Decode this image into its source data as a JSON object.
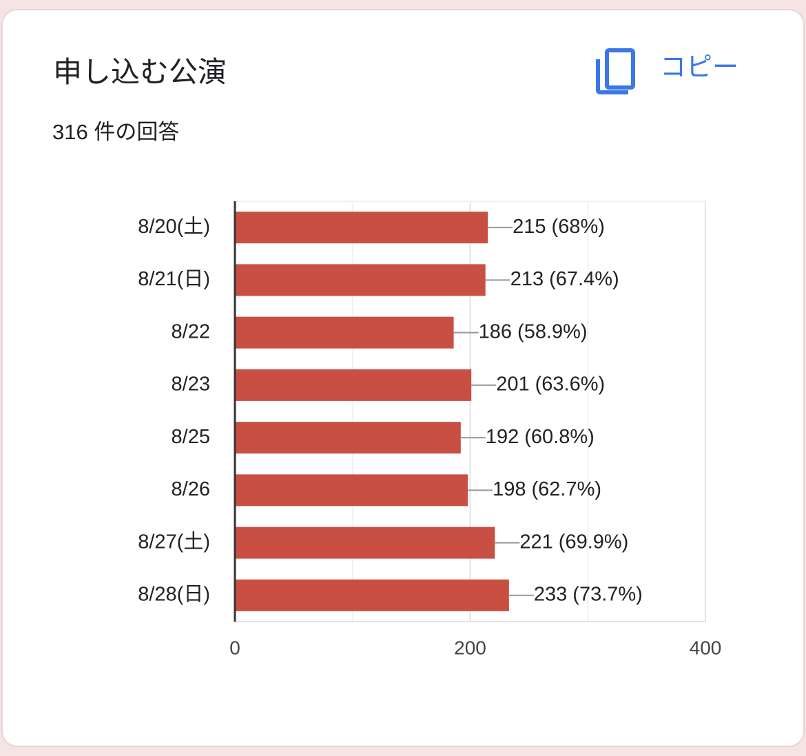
{
  "chart_data": {
    "type": "bar",
    "orientation": "horizontal",
    "title": "申し込む公演",
    "subtitle": "316 件の回答",
    "copy_button": "コピー",
    "categories": [
      "8/20(土)",
      "8/21(日)",
      "8/22",
      "8/23",
      "8/25",
      "8/26",
      "8/27(土)",
      "8/28(日)"
    ],
    "values": [
      215,
      213,
      186,
      201,
      192,
      198,
      221,
      233
    ],
    "value_labels": [
      "215 (68%)",
      "213 (67.4%)",
      "186 (58.9%)",
      "201 (63.6%)",
      "192 (60.8%)",
      "198 (62.7%)",
      "221 (69.9%)",
      "233 (73.7%)"
    ],
    "color": "#c94f43",
    "xlim": [
      0,
      400
    ],
    "xticks": [
      0,
      200,
      400
    ],
    "minor_xticks": [
      100,
      300
    ],
    "grid": true
  }
}
